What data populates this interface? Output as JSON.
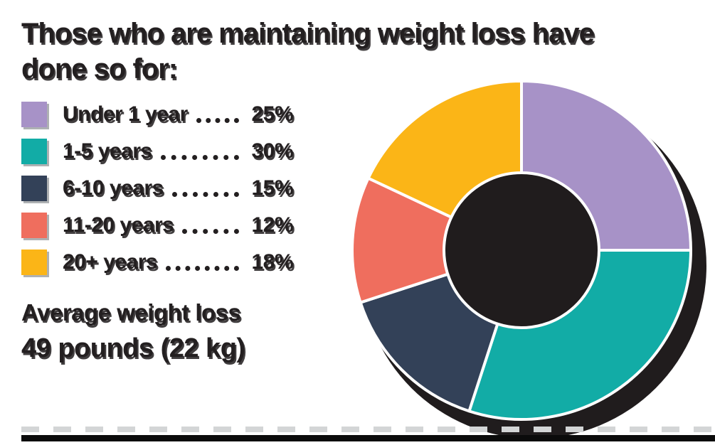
{
  "title": {
    "line1": "Those who are maintaining weight loss have",
    "line2": "done so for:"
  },
  "legend": {
    "items": [
      {
        "label": "Under 1 year",
        "value": "25%"
      },
      {
        "label": "1-5 years",
        "value": "30%"
      },
      {
        "label": "6-10 years",
        "value": "15%"
      },
      {
        "label": "11-20 years",
        "value": "12%"
      },
      {
        "label": "20+ years",
        "value": "18%"
      }
    ]
  },
  "average": {
    "line1": "Average weight loss",
    "line2": "49 pounds (22 kg)"
  },
  "colors": {
    "text": "#231f20",
    "swatch_shadow": "#aeb1b3",
    "divider_dash": "#d3d5d6",
    "divider_bar": "#0b0b0b"
  },
  "chart_data": {
    "type": "pie",
    "subtype": "donut",
    "title": "Those who are maintaining weight loss have done so for:",
    "categories": [
      "Under 1 year",
      "1-5 years",
      "6-10 years",
      "11-20 years",
      "20+ years"
    ],
    "values": [
      25,
      30,
      15,
      12,
      18
    ],
    "unit": "%",
    "colors": [
      "#a792c7",
      "#12aca6",
      "#334158",
      "#ef6e5e",
      "#fbb517"
    ],
    "stroke_color": "#ffffff",
    "shadow_color": "#201c1d",
    "start_angle_deg": 0,
    "direction": "clockwise",
    "inner_radius_ratio": 0.46,
    "legend_position": "left",
    "note": "Average weight loss 49 pounds (22 kg)"
  }
}
